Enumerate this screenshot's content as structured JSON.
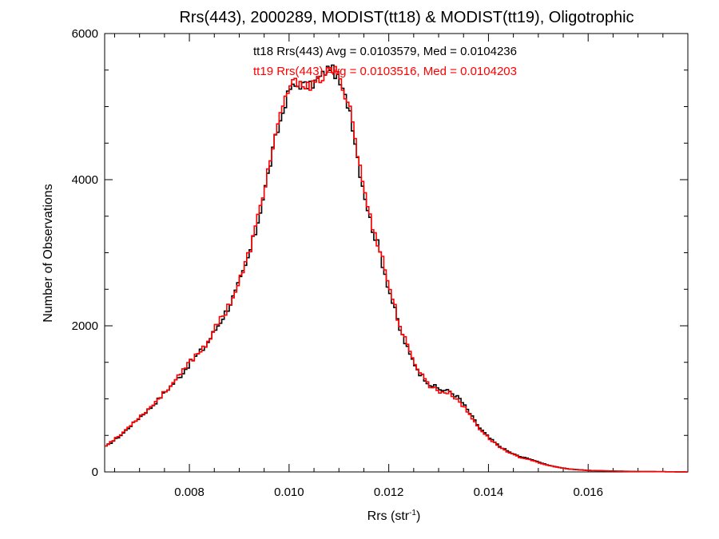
{
  "chart_data": {
    "type": "line",
    "title": "Rrs(443), 2000289, MODIST(tt18) & MODIST(tt19), Oligotrophic",
    "xlabel": "Rrs (str",
    "xlabel_sup": "-1",
    "xlabel_end": ")",
    "ylabel": "Number of Observations",
    "xlim": [
      0.0063,
      0.018
    ],
    "ylim": [
      0,
      6000
    ],
    "x_ticks": [
      {
        "value": 0.008,
        "label": "0.008"
      },
      {
        "value": 0.01,
        "label": "0.010"
      },
      {
        "value": 0.012,
        "label": "0.012"
      },
      {
        "value": 0.014,
        "label": "0.014"
      },
      {
        "value": 0.016,
        "label": "0.016"
      }
    ],
    "y_ticks": [
      {
        "value": 0,
        "label": "0"
      },
      {
        "value": 2000,
        "label": "2000"
      },
      {
        "value": 4000,
        "label": "4000"
      },
      {
        "value": 6000,
        "label": "6000"
      }
    ],
    "annotations": [
      {
        "text": "tt18 Rrs(443) Avg = 0.0103579, Med = 0.0104236",
        "color": "#000000"
      },
      {
        "text": "tt19 Rrs(443) Avg = 0.0103516, Med = 0.0104203",
        "color": "#ff0000"
      }
    ],
    "series": [
      {
        "id": "tt18",
        "color": "#000000",
        "x": [
          0.0063,
          0.0066,
          0.0069,
          0.0072,
          0.0075,
          0.0078,
          0.008,
          0.0083,
          0.0085,
          0.0087,
          0.0089,
          0.0091,
          0.0093,
          0.0095,
          0.0097,
          0.0099,
          0.01,
          0.0102,
          0.0104,
          0.0106,
          0.0108,
          0.0109,
          0.011,
          0.0112,
          0.0114,
          0.0116,
          0.0118,
          0.012,
          0.0122,
          0.0124,
          0.0126,
          0.0128,
          0.013,
          0.0132,
          0.0134,
          0.0136,
          0.0138,
          0.014,
          0.0142,
          0.0144,
          0.0146,
          0.0148,
          0.015,
          0.0152,
          0.0154,
          0.0156,
          0.0158,
          0.016,
          0.0163,
          0.0166,
          0.017,
          0.0175,
          0.018
        ],
        "y": [
          350,
          500,
          700,
          880,
          1100,
          1320,
          1500,
          1720,
          1950,
          2180,
          2450,
          2800,
          3280,
          3900,
          4550,
          5050,
          5250,
          5300,
          5280,
          5400,
          5550,
          5450,
          5300,
          4950,
          4100,
          3450,
          3000,
          2450,
          1950,
          1600,
          1350,
          1200,
          1130,
          1100,
          1000,
          800,
          600,
          460,
          350,
          270,
          210,
          180,
          130,
          90,
          60,
          40,
          30,
          20,
          15,
          10,
          5,
          3,
          0
        ]
      },
      {
        "id": "tt19",
        "color": "#ff0000",
        "x": [
          0.0063,
          0.0066,
          0.0069,
          0.0072,
          0.0075,
          0.0078,
          0.008,
          0.0083,
          0.0085,
          0.0087,
          0.0089,
          0.0091,
          0.0093,
          0.0095,
          0.0097,
          0.0099,
          0.01,
          0.0102,
          0.0104,
          0.0106,
          0.0108,
          0.0109,
          0.011,
          0.0112,
          0.0114,
          0.0116,
          0.0118,
          0.012,
          0.0122,
          0.0124,
          0.0126,
          0.0128,
          0.013,
          0.0132,
          0.0134,
          0.0136,
          0.0138,
          0.014,
          0.0142,
          0.0144,
          0.0146,
          0.0148,
          0.015,
          0.0152,
          0.0154,
          0.0156,
          0.0158,
          0.016,
          0.0163,
          0.0166,
          0.017,
          0.0175,
          0.018
        ],
        "y": [
          360,
          510,
          710,
          890,
          1110,
          1330,
          1520,
          1740,
          1970,
          2200,
          2470,
          2830,
          3320,
          3950,
          4600,
          5100,
          5300,
          5350,
          5250,
          5380,
          5500,
          5500,
          5350,
          5000,
          4150,
          3480,
          3050,
          2500,
          2000,
          1620,
          1370,
          1180,
          1100,
          1080,
          960,
          780,
          590,
          450,
          340,
          260,
          200,
          170,
          120,
          85,
          58,
          38,
          28,
          18,
          14,
          9,
          5,
          3,
          0
        ]
      }
    ]
  }
}
